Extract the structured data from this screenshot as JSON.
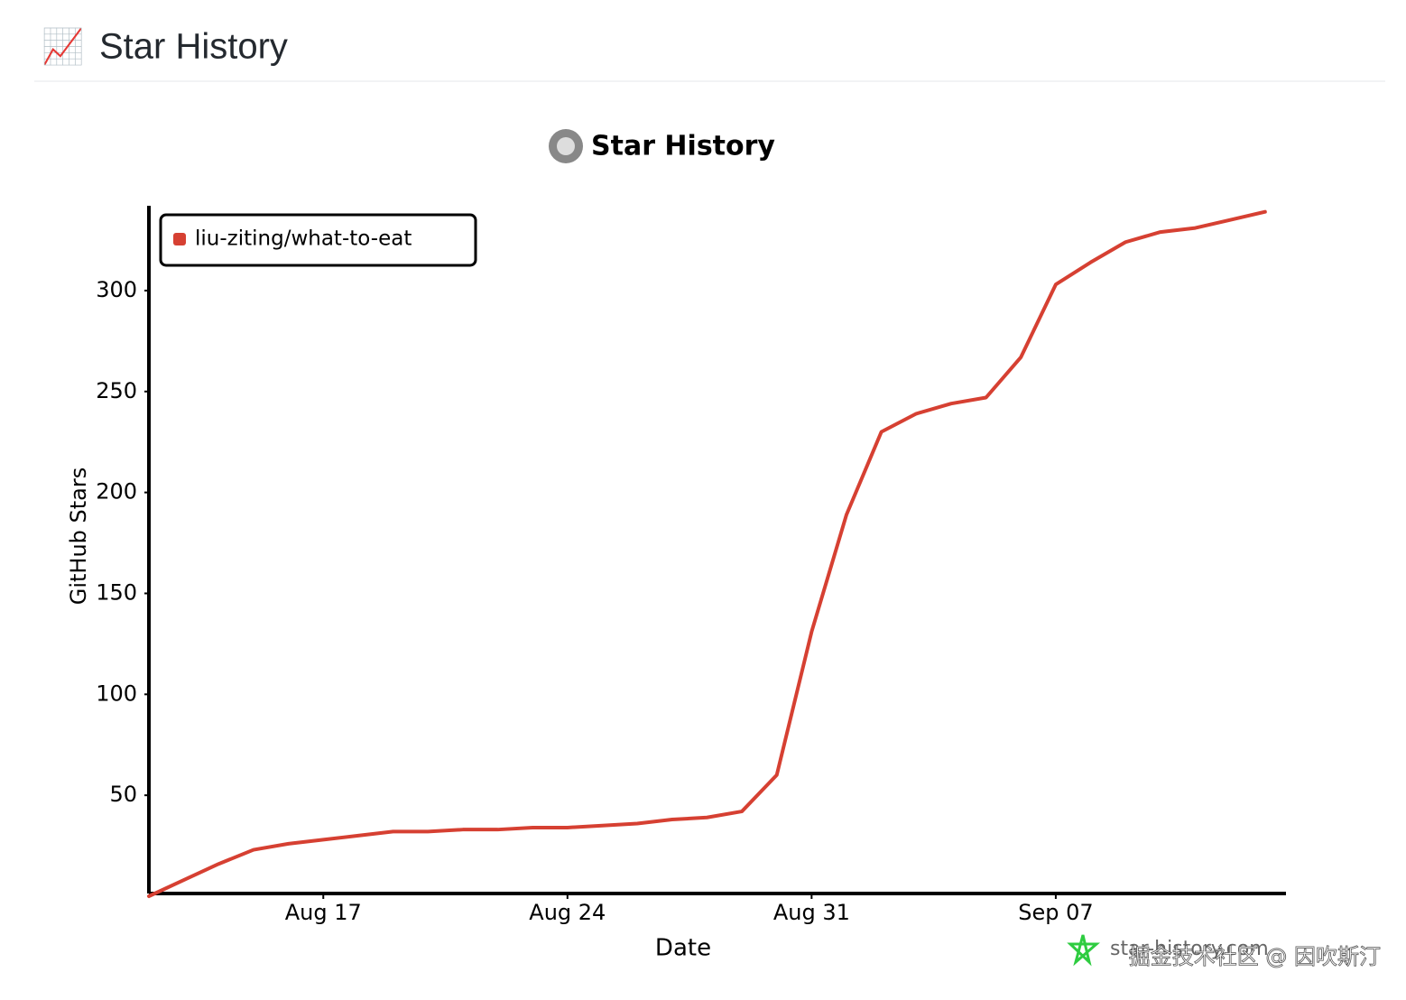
{
  "header": {
    "icon": "📈",
    "title": "Star History"
  },
  "chart_data": {
    "type": "line",
    "title": "Star History",
    "x_label": "Date",
    "y_label": "GitHub Stars",
    "x": [
      "Aug 12",
      "Aug 13",
      "Aug 14",
      "Aug 15",
      "Aug 16",
      "Aug 17",
      "Aug 18",
      "Aug 19",
      "Aug 20",
      "Aug 21",
      "Aug 22",
      "Aug 23",
      "Aug 24",
      "Aug 25",
      "Aug 26",
      "Aug 27",
      "Aug 28",
      "Aug 29",
      "Aug 30",
      "Aug 31",
      "Sep 01",
      "Sep 02",
      "Sep 03",
      "Sep 04",
      "Sep 05",
      "Sep 06",
      "Sep 07",
      "Sep 08",
      "Sep 09",
      "Sep 10",
      "Sep 11",
      "Sep 12",
      "Sep 13"
    ],
    "series": [
      {
        "name": "liu-ziting/what-to-eat",
        "color": "#d64032",
        "values": [
          0,
          8,
          16,
          23,
          26,
          28,
          30,
          32,
          32,
          33,
          33,
          34,
          34,
          35,
          36,
          38,
          39,
          42,
          60,
          131,
          189,
          230,
          239,
          244,
          247,
          267,
          303,
          314,
          324,
          329,
          331,
          335,
          339
        ]
      }
    ],
    "xticks": [
      {
        "value": "Aug 17",
        "label": "Aug 17"
      },
      {
        "value": "Aug 24",
        "label": "Aug 24"
      },
      {
        "value": "Aug 31",
        "label": "Aug 31"
      },
      {
        "value": "Sep 07",
        "label": "Sep 07"
      }
    ],
    "ylim": [
      0,
      342
    ],
    "yticks": [
      50,
      100,
      150,
      200,
      250,
      300
    ],
    "legend": "top-left"
  },
  "watermark": {
    "site": "star-history.com",
    "overlay": "掘金技术社区 @ 因吹斯汀"
  }
}
